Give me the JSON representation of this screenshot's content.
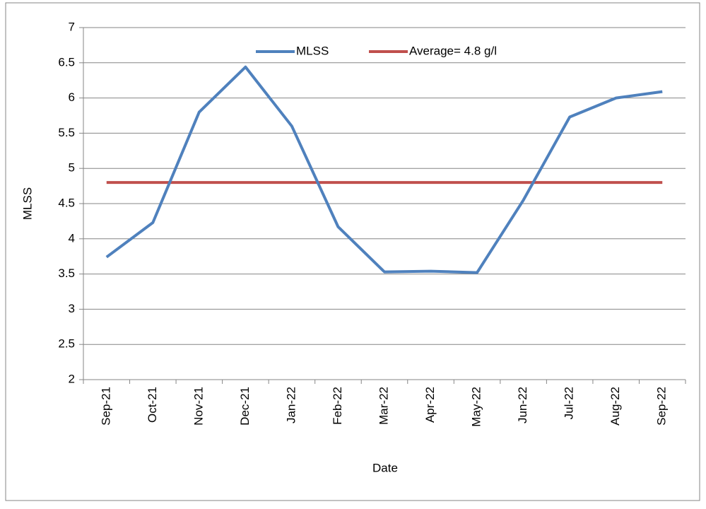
{
  "chart_data": {
    "type": "line",
    "categories": [
      "Sep-21",
      "Oct-21",
      "Nov-21",
      "Dec-21",
      "Jan-22",
      "Feb-22",
      "Mar-22",
      "Apr-22",
      "May-22",
      "Jun-22",
      "Jul-22",
      "Aug-22",
      "Sep-22"
    ],
    "series": [
      {
        "name": "MLSS",
        "color": "#4f81bd",
        "values": [
          3.74,
          4.23,
          5.8,
          6.44,
          5.6,
          4.17,
          3.53,
          3.54,
          3.52,
          4.55,
          5.73,
          6.0,
          6.09
        ]
      },
      {
        "name": "Average= 4.8 g/l",
        "color": "#c0504d",
        "values": [
          4.8,
          4.8,
          4.8,
          4.8,
          4.8,
          4.8,
          4.8,
          4.8,
          4.8,
          4.8,
          4.8,
          4.8,
          4.8
        ]
      }
    ],
    "x_label": "Date",
    "y_label": "MLSS",
    "ylim": [
      2,
      7
    ],
    "yticks": [
      2,
      2.5,
      3,
      3.5,
      4,
      4.5,
      5,
      5.5,
      6,
      6.5,
      7
    ],
    "grid": true,
    "legend": "top"
  }
}
